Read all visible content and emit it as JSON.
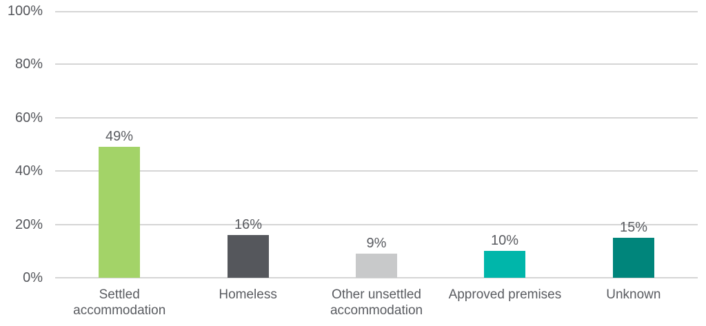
{
  "chart_data": {
    "type": "bar",
    "title": "",
    "xlabel": "",
    "ylabel": "",
    "categories": [
      "Settled accommodation",
      "Homeless",
      "Other unsettled accommodation",
      "Approved premises",
      "Unknown"
    ],
    "values": [
      49,
      16,
      9,
      10,
      15
    ],
    "data_labels": [
      "49%",
      "16%",
      "9%",
      "10%",
      "15%"
    ],
    "bar_colors": [
      "#A3D368",
      "#55575C",
      "#C8C9CA",
      "#00B6AA",
      "#00857B"
    ],
    "ylim": [
      0,
      100
    ],
    "y_tick_values": [
      0,
      20,
      40,
      60,
      80,
      100
    ],
    "y_tick_labels": [
      "0%",
      "20%",
      "40%",
      "60%",
      "80%",
      "100%"
    ],
    "grid": true,
    "legend": false,
    "colors": {
      "gridline": "#D5D5D5",
      "axis_line": "#D5D5D5",
      "tick_text": "#54565B",
      "data_label_text": "#595B60",
      "category_text": "#595B60",
      "background": "#FFFFFF"
    }
  }
}
